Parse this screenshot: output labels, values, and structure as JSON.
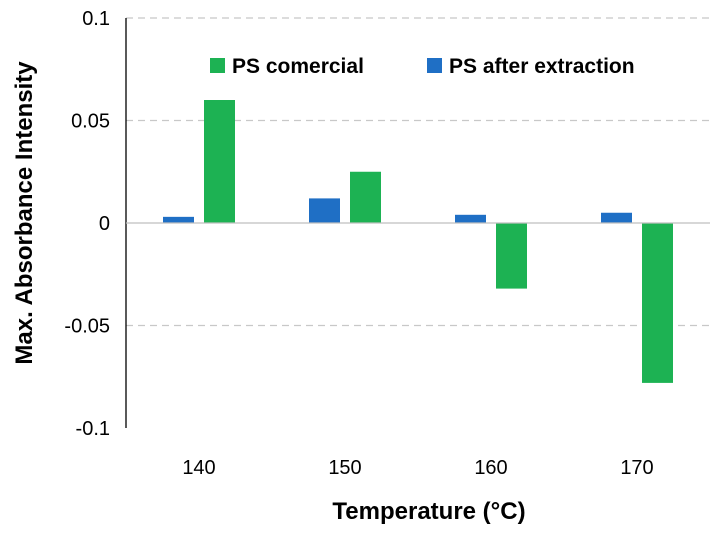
{
  "chart_data": {
    "type": "bar",
    "categories": [
      "140",
      "150",
      "160",
      "170"
    ],
    "series": [
      {
        "name": "PS after extraction",
        "color": "#1F6FC5",
        "values": [
          0.003,
          0.012,
          0.004,
          0.005
        ]
      },
      {
        "name": "PS comercial",
        "color": "#1DB253",
        "values": [
          0.06,
          0.025,
          -0.032,
          -0.078
        ]
      }
    ],
    "legend_order": [
      "PS comercial",
      "PS after extraction"
    ],
    "legend_position": "top",
    "xlabel": "Temperature (°C)",
    "ylabel": "Max. Absorbance Intensity",
    "ylim": [
      -0.1,
      0.1
    ],
    "yticks": [
      -0.1,
      -0.05,
      0,
      0.05,
      0.1
    ],
    "ytick_labels": [
      "-0.1",
      "-0.05",
      "0",
      "0.05",
      "0.1"
    ],
    "grid": "horizontal dashed"
  }
}
